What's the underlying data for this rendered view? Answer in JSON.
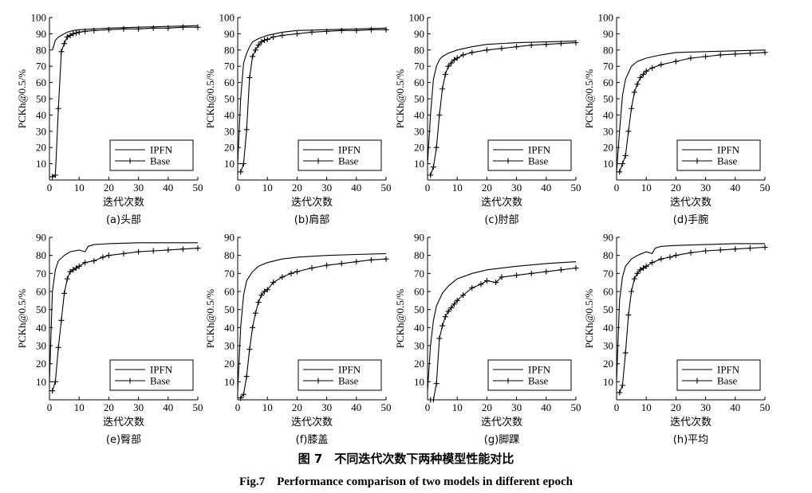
{
  "figure": {
    "caption_cn": "图 7　不同迭代次数下两种模型性能对比",
    "caption_en": "Fig.7　Performance comparison of two models in different epoch"
  },
  "colors": {
    "line": "#000000",
    "background": "#ffffff"
  },
  "chart_data": [
    {
      "type": "line",
      "label": "(a)头部",
      "xlabel": "迭代次数",
      "ylabel": "PCKh@0.5/%",
      "xlim": [
        0,
        50
      ],
      "ylim": [
        0,
        100
      ],
      "xticks": [
        0,
        10,
        20,
        30,
        40,
        50
      ],
      "yticks": [
        10,
        20,
        30,
        40,
        50,
        60,
        70,
        80,
        90,
        100
      ],
      "legend": "bottom-right",
      "grid": false,
      "series": [
        {
          "name": "IPFN",
          "marker": "none",
          "x": [
            1,
            2,
            3,
            4,
            5,
            6,
            8,
            10,
            15,
            20,
            30,
            40,
            50
          ],
          "y": [
            80,
            86,
            88,
            89,
            90,
            91,
            92,
            92.5,
            93,
            93.5,
            94,
            94.5,
            95
          ]
        },
        {
          "name": "Base",
          "marker": "plus",
          "x": [
            1,
            2,
            3,
            4,
            5,
            6,
            7,
            8,
            9,
            10,
            12,
            15,
            20,
            25,
            30,
            35,
            40,
            45,
            50
          ],
          "y": [
            2,
            3,
            44,
            79,
            84,
            88,
            89,
            90,
            90.5,
            91,
            91.5,
            92,
            92.5,
            93,
            93,
            93.5,
            93.5,
            94,
            94
          ]
        }
      ]
    },
    {
      "type": "line",
      "label": "(b)肩部",
      "xlabel": "迭代次数",
      "ylabel": "PCKh@0.5/%",
      "xlim": [
        0,
        50
      ],
      "ylim": [
        0,
        100
      ],
      "xticks": [
        0,
        10,
        20,
        30,
        40,
        50
      ],
      "yticks": [
        10,
        20,
        30,
        40,
        50,
        60,
        70,
        80,
        90,
        100
      ],
      "legend": "bottom-right",
      "grid": false,
      "series": [
        {
          "name": "IPFN",
          "marker": "none",
          "x": [
            0,
            1,
            2,
            3,
            4,
            5,
            7,
            10,
            15,
            20,
            30,
            40,
            50
          ],
          "y": [
            10,
            50,
            72,
            78,
            82,
            85,
            87,
            89,
            91,
            92,
            92.5,
            93,
            93.5
          ]
        },
        {
          "name": "Base",
          "marker": "plus",
          "x": [
            1,
            2,
            3,
            4,
            5,
            6,
            7,
            8,
            9,
            10,
            12,
            15,
            20,
            25,
            30,
            35,
            40,
            45,
            50
          ],
          "y": [
            5,
            10,
            31,
            63,
            76,
            80,
            83,
            85,
            86,
            86.5,
            88,
            89,
            90,
            91,
            91.5,
            92,
            92,
            92.5,
            92.5
          ]
        }
      ]
    },
    {
      "type": "line",
      "label": "(c)肘部",
      "xlabel": "迭代次数",
      "ylabel": "PCKh@0.5/%",
      "xlim": [
        0,
        50
      ],
      "ylim": [
        0,
        100
      ],
      "xticks": [
        0,
        10,
        20,
        30,
        40,
        50
      ],
      "yticks": [
        10,
        20,
        30,
        40,
        50,
        60,
        70,
        80,
        90,
        100
      ],
      "legend": "bottom-right",
      "grid": false,
      "series": [
        {
          "name": "IPFN",
          "marker": "none",
          "x": [
            0,
            1,
            2,
            3,
            4,
            5,
            7,
            10,
            15,
            20,
            30,
            40,
            50
          ],
          "y": [
            10,
            40,
            62,
            70,
            74,
            76,
            78,
            80,
            82,
            83.5,
            84.5,
            85,
            85.5
          ]
        },
        {
          "name": "Base",
          "marker": "plus",
          "x": [
            1,
            2,
            3,
            4,
            5,
            6,
            7,
            8,
            9,
            10,
            12,
            15,
            20,
            25,
            30,
            35,
            40,
            45,
            50
          ],
          "y": [
            3,
            8,
            20,
            40,
            56,
            65,
            70,
            72,
            74,
            75,
            77,
            78.5,
            80,
            81,
            82,
            83,
            83.5,
            84,
            84.5
          ]
        }
      ]
    },
    {
      "type": "line",
      "label": "(d)手腕",
      "xlabel": "迭代次数",
      "ylabel": "PCKh@0.5/%",
      "xlim": [
        0,
        50
      ],
      "ylim": [
        0,
        100
      ],
      "xticks": [
        0,
        10,
        20,
        30,
        40,
        50
      ],
      "yticks": [
        10,
        20,
        30,
        40,
        50,
        60,
        70,
        80,
        90,
        100
      ],
      "legend": "bottom-right",
      "grid": false,
      "series": [
        {
          "name": "IPFN",
          "marker": "none",
          "x": [
            0,
            1,
            2,
            3,
            4,
            5,
            7,
            10,
            15,
            20,
            30,
            40,
            50
          ],
          "y": [
            5,
            30,
            52,
            62,
            66,
            70,
            73,
            75,
            77,
            78.5,
            79,
            79.5,
            80
          ]
        },
        {
          "name": "Base",
          "marker": "plus",
          "x": [
            1,
            2,
            3,
            4,
            5,
            6,
            7,
            8,
            9,
            10,
            12,
            15,
            20,
            25,
            30,
            35,
            40,
            45,
            50
          ],
          "y": [
            5,
            10,
            15,
            30,
            44,
            54,
            59,
            63,
            65,
            67,
            69,
            71,
            73,
            75,
            76,
            77,
            77.5,
            78,
            78.5
          ]
        }
      ]
    },
    {
      "type": "line",
      "label": "(e)臀部",
      "xlabel": "迭代次数",
      "ylabel": "PCKh@0.5/%",
      "xlim": [
        0,
        50
      ],
      "ylim": [
        0,
        90
      ],
      "xticks": [
        0,
        10,
        20,
        30,
        40,
        50
      ],
      "yticks": [
        10,
        20,
        30,
        40,
        50,
        60,
        70,
        80,
        90
      ],
      "legend": "bottom-right",
      "grid": false,
      "series": [
        {
          "name": "IPFN",
          "marker": "none",
          "x": [
            0,
            1,
            2,
            3,
            5,
            7,
            10,
            12,
            13,
            15,
            20,
            30,
            40,
            50
          ],
          "y": [
            10,
            60,
            72,
            77,
            80,
            82,
            83,
            82,
            85,
            86,
            86.5,
            87,
            87,
            87
          ]
        },
        {
          "name": "Base",
          "marker": "plus",
          "x": [
            1,
            2,
            3,
            4,
            5,
            6,
            7,
            8,
            9,
            10,
            12,
            15,
            18,
            20,
            25,
            30,
            35,
            40,
            45,
            50
          ],
          "y": [
            5,
            10,
            29,
            44,
            59,
            67,
            71,
            72,
            73,
            74,
            76,
            77,
            79,
            80,
            81,
            82,
            82.5,
            83,
            83.5,
            84
          ]
        }
      ]
    },
    {
      "type": "line",
      "label": "(f)膝盖",
      "xlabel": "迭代次数",
      "ylabel": "PCKh@0.5/%",
      "xlim": [
        0,
        50
      ],
      "ylim": [
        0,
        90
      ],
      "xticks": [
        0,
        10,
        20,
        30,
        40,
        50
      ],
      "yticks": [
        10,
        20,
        30,
        40,
        50,
        60,
        70,
        80,
        90
      ],
      "legend": "bottom-right",
      "grid": false,
      "series": [
        {
          "name": "IPFN",
          "marker": "none",
          "x": [
            0,
            1,
            2,
            3,
            5,
            7,
            10,
            15,
            20,
            30,
            40,
            50
          ],
          "y": [
            5,
            40,
            58,
            66,
            71,
            74,
            76,
            78,
            79,
            80,
            80.5,
            81
          ]
        },
        {
          "name": "Base",
          "marker": "plus",
          "x": [
            1,
            2,
            3,
            4,
            5,
            6,
            7,
            8,
            9,
            10,
            12,
            15,
            18,
            20,
            25,
            30,
            35,
            40,
            45,
            50
          ],
          "y": [
            1,
            3,
            13,
            28,
            40,
            48,
            54,
            58,
            60,
            61,
            65,
            68,
            70,
            71,
            73,
            74.5,
            75.5,
            76.5,
            77.5,
            78
          ]
        }
      ]
    },
    {
      "type": "line",
      "label": "(g)脚踝",
      "xlabel": "迭代次数",
      "ylabel": "PCKh@0.5/%",
      "xlim": [
        0,
        50
      ],
      "ylim": [
        0,
        90
      ],
      "xticks": [
        0,
        10,
        20,
        30,
        40,
        50
      ],
      "yticks": [
        10,
        20,
        30,
        40,
        50,
        60,
        70,
        80,
        90
      ],
      "legend": "bottom-right",
      "grid": false,
      "series": [
        {
          "name": "IPFN",
          "marker": "none",
          "x": [
            0,
            1,
            2,
            3,
            5,
            7,
            10,
            15,
            20,
            30,
            40,
            50
          ],
          "y": [
            5,
            30,
            44,
            52,
            59,
            63,
            67,
            70,
            72,
            74,
            75.5,
            76.5
          ]
        },
        {
          "name": "Base",
          "marker": "plus",
          "x": [
            1,
            2,
            3,
            4,
            5,
            6,
            7,
            8,
            9,
            10,
            12,
            15,
            18,
            20,
            23,
            25,
            30,
            35,
            40,
            45,
            50
          ],
          "y": [
            0,
            0,
            9,
            34,
            41,
            46,
            49,
            51,
            53,
            55,
            58,
            62,
            64,
            66,
            65,
            68,
            69,
            70,
            71,
            72,
            73
          ]
        }
      ]
    },
    {
      "type": "line",
      "label": "(h)平均",
      "xlabel": "迭代次数",
      "ylabel": "PCKh@0.5/%",
      "xlim": [
        0,
        50
      ],
      "ylim": [
        0,
        90
      ],
      "xticks": [
        0,
        10,
        20,
        30,
        40,
        50
      ],
      "yticks": [
        10,
        20,
        30,
        40,
        50,
        60,
        70,
        80,
        90
      ],
      "legend": "bottom-right",
      "grid": false,
      "series": [
        {
          "name": "IPFN",
          "marker": "none",
          "x": [
            0,
            1,
            2,
            3,
            5,
            7,
            10,
            12,
            13,
            15,
            20,
            30,
            40,
            50
          ],
          "y": [
            10,
            55,
            68,
            74,
            78,
            80,
            82,
            81,
            84,
            85,
            85.5,
            86,
            86.5,
            86.5
          ]
        },
        {
          "name": "Base",
          "marker": "plus",
          "x": [
            1,
            2,
            3,
            4,
            5,
            6,
            7,
            8,
            9,
            10,
            12,
            15,
            18,
            20,
            25,
            30,
            35,
            40,
            45,
            50
          ],
          "y": [
            4,
            8,
            26,
            47,
            60,
            67,
            70,
            72,
            73,
            74,
            76,
            78,
            79,
            80,
            81.5,
            82.5,
            83,
            83.5,
            84,
            84.5
          ]
        }
      ]
    }
  ]
}
